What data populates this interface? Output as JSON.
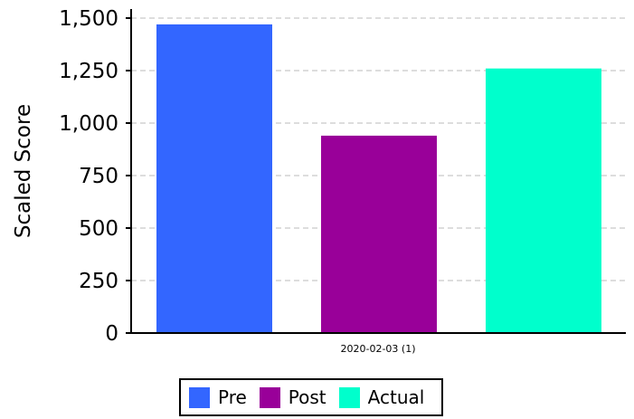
{
  "chart_data": {
    "type": "bar",
    "categories": [
      "2020-02-03 (1)"
    ],
    "series": [
      {
        "name": "Pre",
        "values": [
          1470
        ],
        "color": "#3366ff"
      },
      {
        "name": "Post",
        "values": [
          940
        ],
        "color": "#990099"
      },
      {
        "name": "Actual",
        "values": [
          1260
        ],
        "color": "#00ffcc"
      }
    ],
    "xlabel": "",
    "ylabel": "Scaled Score",
    "ylim": [
      0,
      1500
    ],
    "yticks": [
      0,
      250,
      500,
      750,
      1000,
      1250,
      1500
    ],
    "ytick_labels": [
      "0",
      "250",
      "500",
      "750",
      "1,000",
      "1,250",
      "1,500"
    ],
    "grid": true,
    "legend_position": "bottom"
  }
}
